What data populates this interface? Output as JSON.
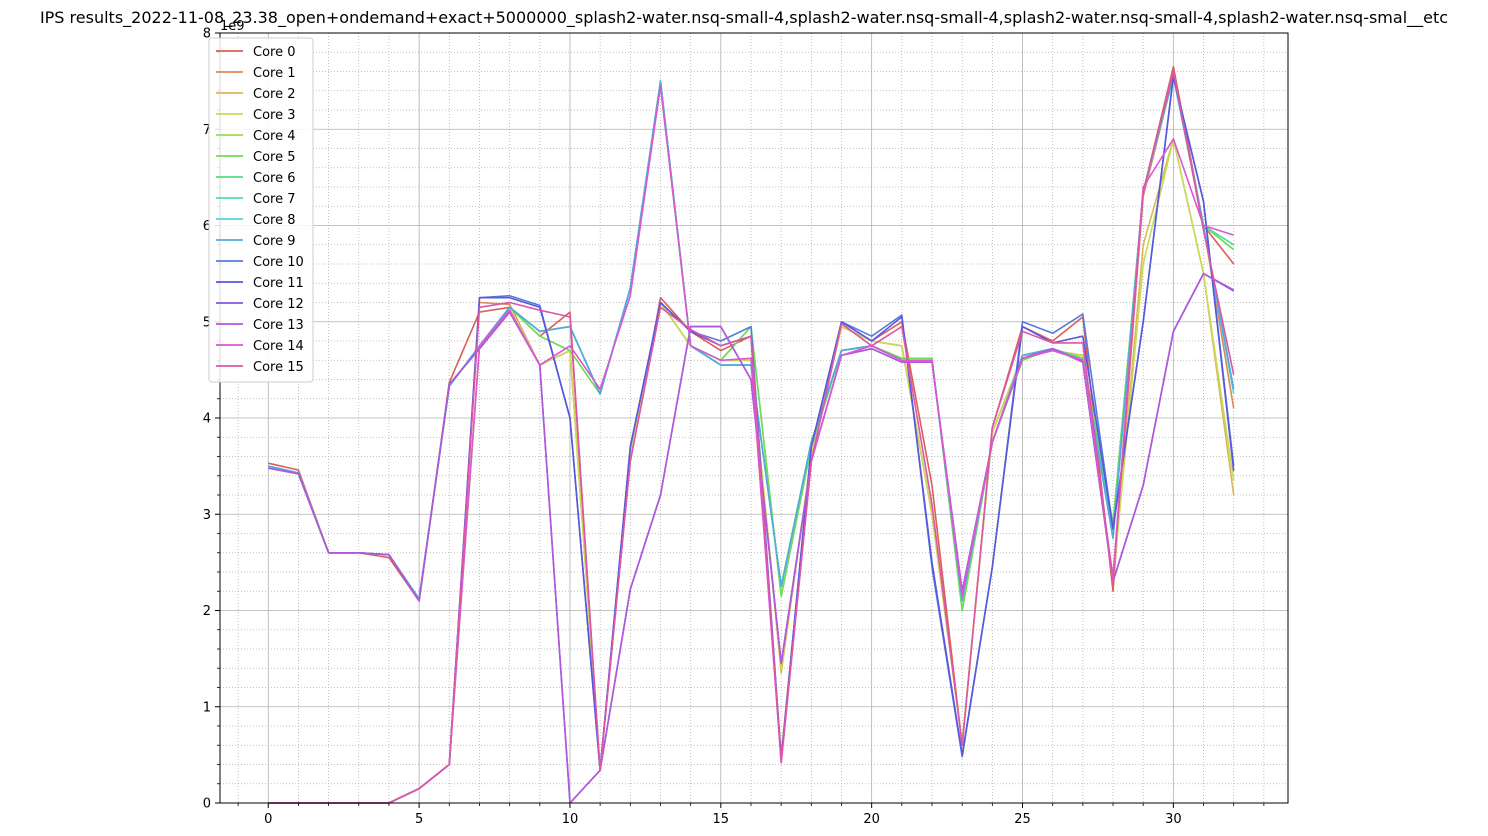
{
  "chart_data": {
    "type": "line",
    "title": "IPS results_2022-11-08_23.38_open+ondemand+exact+5000000_splash2-water.nsq-small-4,splash2-water.nsq-small-4,splash2-water.nsq-small-4,splash2-water.nsq-smal__etc",
    "y_offset_label": "1e9",
    "xlim": [
      -1.6,
      33.8
    ],
    "ylim": [
      0,
      8
    ],
    "x_ticks": [
      0,
      5,
      10,
      15,
      20,
      25,
      30
    ],
    "y_ticks": [
      0,
      1,
      2,
      3,
      4,
      5,
      6,
      7,
      8
    ],
    "grid": true,
    "minor_grid": true,
    "legend_position": "upper-left",
    "x": [
      0,
      1,
      2,
      3,
      4,
      5,
      6,
      7,
      8,
      9,
      10,
      11,
      12,
      13,
      14,
      15,
      16,
      17,
      18,
      19,
      20,
      21,
      22,
      23,
      24,
      25,
      26,
      27,
      28,
      29,
      30,
      31,
      32
    ],
    "series": [
      {
        "name": "Core 0",
        "color": "#db5f57",
        "values": [
          3.53,
          3.46,
          2.6,
          2.6,
          2.55,
          2.1,
          4.37,
          5.1,
          5.15,
          4.85,
          5.1,
          0.34,
          3.55,
          5.25,
          4.9,
          4.7,
          4.85,
          0.45,
          3.55,
          5.0,
          4.8,
          5.0,
          3.3,
          0.6,
          3.9,
          4.95,
          4.8,
          5.05,
          2.2,
          6.35,
          7.65,
          6.0,
          5.6
        ]
      },
      {
        "name": "Core 1",
        "color": "#db8a57",
        "values": [
          0.0,
          0.0,
          0.0,
          0.0,
          0.0,
          0.15,
          0.4,
          5.2,
          5.18,
          4.55,
          4.7,
          0.34,
          3.6,
          5.2,
          4.75,
          4.6,
          4.6,
          0.5,
          3.6,
          4.95,
          4.8,
          4.75,
          3.0,
          0.62,
          3.85,
          4.65,
          4.7,
          4.65,
          2.3,
          6.3,
          7.55,
          6.0,
          4.1
        ]
      },
      {
        "name": "Core 2",
        "color": "#dbb757",
        "values": [
          0.0,
          0.0,
          0.0,
          0.0,
          0.0,
          0.15,
          0.4,
          4.75,
          5.15,
          4.55,
          4.7,
          0.34,
          3.6,
          5.2,
          4.75,
          4.6,
          4.6,
          1.35,
          3.6,
          4.95,
          4.8,
          4.75,
          3.0,
          0.62,
          3.85,
          4.65,
          4.7,
          4.65,
          2.3,
          5.8,
          6.9,
          5.5,
          3.2
        ]
      },
      {
        "name": "Core 3",
        "color": "#c8db57",
        "values": [
          0.0,
          0.0,
          0.0,
          0.0,
          0.0,
          0.15,
          0.4,
          4.75,
          5.15,
          4.55,
          4.7,
          0.34,
          3.6,
          5.2,
          4.75,
          4.6,
          4.6,
          1.4,
          3.6,
          4.95,
          4.8,
          4.75,
          3.0,
          0.62,
          3.85,
          4.65,
          4.7,
          4.65,
          2.3,
          5.6,
          6.9,
          5.5,
          3.35
        ]
      },
      {
        "name": "Core 4",
        "color": "#9ddb57",
        "values": [
          3.5,
          3.43,
          2.6,
          2.6,
          2.58,
          2.12,
          4.33,
          4.75,
          5.15,
          4.85,
          4.7,
          4.25,
          5.35,
          7.45,
          4.75,
          4.6,
          4.95,
          2.15,
          3.7,
          4.7,
          4.75,
          4.62,
          4.62,
          2.0,
          3.75,
          4.6,
          4.72,
          4.62,
          2.9,
          6.35,
          7.55,
          6.0,
          5.75
        ]
      },
      {
        "name": "Core 5",
        "color": "#6fdb57",
        "values": [
          3.5,
          3.43,
          2.6,
          2.6,
          2.58,
          2.12,
          4.33,
          4.75,
          5.15,
          4.85,
          4.7,
          4.25,
          5.35,
          7.45,
          4.75,
          4.6,
          4.95,
          2.15,
          3.7,
          4.7,
          4.75,
          4.62,
          4.62,
          2.0,
          3.75,
          4.6,
          4.72,
          4.62,
          2.9,
          6.35,
          7.55,
          6.0,
          5.75
        ]
      },
      {
        "name": "Core 6",
        "color": "#57db80",
        "values": [
          3.5,
          3.43,
          2.6,
          2.6,
          2.58,
          2.12,
          4.33,
          4.75,
          5.15,
          4.9,
          4.95,
          4.25,
          5.35,
          7.5,
          4.75,
          4.55,
          4.55,
          2.25,
          3.75,
          4.7,
          4.75,
          4.6,
          4.6,
          2.1,
          3.75,
          4.65,
          4.72,
          4.6,
          2.8,
          6.35,
          7.55,
          6.0,
          5.8
        ]
      },
      {
        "name": "Core 7",
        "color": "#57dbab",
        "values": [
          3.5,
          3.43,
          2.6,
          2.6,
          2.58,
          2.12,
          4.33,
          4.75,
          5.15,
          4.9,
          4.95,
          4.25,
          5.35,
          7.5,
          4.75,
          4.55,
          4.55,
          2.25,
          3.75,
          4.7,
          4.75,
          4.6,
          4.6,
          2.1,
          3.75,
          4.65,
          4.72,
          4.6,
          2.8,
          6.35,
          7.55,
          6.0,
          5.8
        ]
      },
      {
        "name": "Core 8",
        "color": "#57d3db",
        "values": [
          3.5,
          3.43,
          2.6,
          2.6,
          2.58,
          2.12,
          4.33,
          4.75,
          5.15,
          4.9,
          4.95,
          4.25,
          5.35,
          7.5,
          4.75,
          4.55,
          4.55,
          2.25,
          3.75,
          4.7,
          4.75,
          4.6,
          4.6,
          2.1,
          3.75,
          4.65,
          4.72,
          4.6,
          2.75,
          6.35,
          7.55,
          6.0,
          4.25
        ]
      },
      {
        "name": "Core 9",
        "color": "#57a8db",
        "values": [
          3.5,
          3.43,
          2.6,
          2.6,
          2.58,
          2.12,
          4.33,
          4.75,
          5.15,
          4.9,
          4.95,
          4.25,
          5.35,
          7.5,
          4.75,
          4.55,
          4.55,
          2.25,
          3.75,
          4.7,
          4.75,
          4.6,
          4.6,
          2.1,
          3.75,
          4.65,
          4.72,
          4.6,
          2.75,
          6.35,
          7.55,
          6.0,
          4.3
        ]
      },
      {
        "name": "Core 10",
        "color": "#577bdb",
        "values": [
          0.0,
          0.0,
          0.0,
          0.0,
          0.0,
          0.15,
          0.4,
          5.25,
          5.27,
          5.17,
          4.0,
          0.34,
          3.7,
          5.2,
          4.9,
          4.8,
          4.95,
          0.45,
          3.7,
          5.0,
          4.85,
          5.07,
          2.45,
          0.48,
          2.45,
          5.0,
          4.88,
          5.08,
          2.85,
          5.0,
          7.55,
          6.25,
          3.5
        ]
      },
      {
        "name": "Core 11",
        "color": "#5a57db",
        "values": [
          0.0,
          0.0,
          0.0,
          0.0,
          0.0,
          0.15,
          0.4,
          5.25,
          5.25,
          5.15,
          4.0,
          0.34,
          3.7,
          5.2,
          4.9,
          4.75,
          4.85,
          0.45,
          3.7,
          5.0,
          4.8,
          5.05,
          2.5,
          0.5,
          2.45,
          4.95,
          4.78,
          4.85,
          2.85,
          5.0,
          7.55,
          6.25,
          3.45
        ]
      },
      {
        "name": "Core 12",
        "color": "#8557db",
        "values": [
          3.48,
          3.42,
          2.6,
          2.6,
          2.58,
          2.1,
          4.35,
          4.72,
          5.1,
          4.55,
          0.0,
          0.34,
          2.22,
          3.2,
          4.95,
          4.95,
          4.4,
          1.45,
          3.55,
          4.65,
          4.72,
          4.58,
          4.58,
          2.2,
          3.75,
          4.62,
          4.72,
          4.58,
          2.3,
          3.3,
          4.9,
          5.5,
          5.32
        ]
      },
      {
        "name": "Core 13",
        "color": "#b257db",
        "values": [
          3.48,
          3.42,
          2.6,
          2.6,
          2.58,
          2.1,
          4.35,
          4.72,
          5.1,
          4.55,
          0.0,
          0.34,
          2.22,
          3.2,
          4.95,
          4.95,
          4.4,
          1.45,
          3.55,
          4.65,
          4.72,
          4.58,
          4.58,
          2.2,
          3.75,
          4.62,
          4.72,
          4.58,
          2.3,
          3.3,
          4.9,
          5.5,
          5.33
        ]
      },
      {
        "name": "Core 14",
        "color": "#db57d3",
        "values": [
          0.0,
          0.0,
          0.0,
          0.0,
          0.0,
          0.15,
          0.4,
          4.75,
          5.12,
          4.55,
          4.75,
          4.3,
          5.27,
          7.45,
          4.75,
          4.6,
          4.62,
          0.42,
          3.55,
          4.65,
          4.75,
          4.6,
          4.6,
          2.15,
          3.75,
          4.62,
          4.7,
          4.6,
          2.35,
          6.4,
          6.9,
          6.0,
          5.9
        ]
      },
      {
        "name": "Core 15",
        "color": "#db57a8",
        "values": [
          0.0,
          0.0,
          0.0,
          0.0,
          0.0,
          0.15,
          0.4,
          5.15,
          5.2,
          5.12,
          5.05,
          0.34,
          3.55,
          5.15,
          4.92,
          4.75,
          4.85,
          0.42,
          3.55,
          4.98,
          4.75,
          4.95,
          3.1,
          0.6,
          3.9,
          4.9,
          4.78,
          4.78,
          2.3,
          6.35,
          7.6,
          5.95,
          4.45
        ]
      }
    ]
  }
}
